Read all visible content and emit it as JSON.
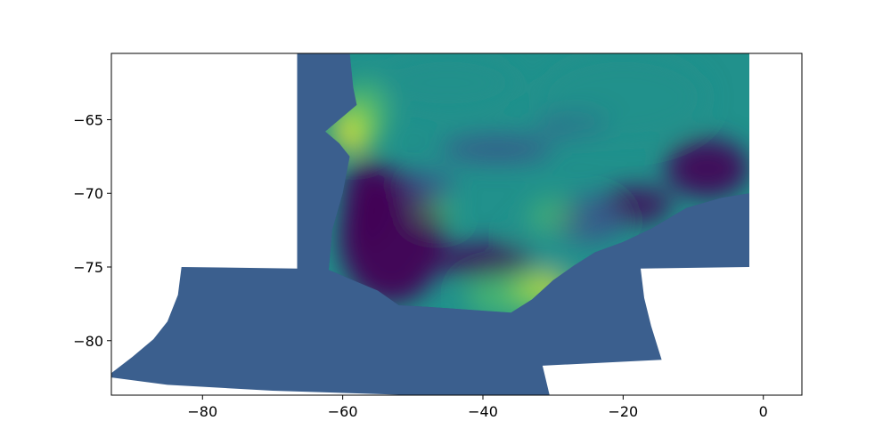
{
  "chart_data": {
    "type": "heatmap",
    "title": "",
    "xlabel": "",
    "ylabel": "",
    "xlim": [
      -93,
      5.5
    ],
    "ylim": [
      -83.7,
      -60.5
    ],
    "xticks": [
      {
        "value": -80,
        "label": "−80"
      },
      {
        "value": -60,
        "label": "−60"
      },
      {
        "value": -40,
        "label": "−40"
      },
      {
        "value": -20,
        "label": "−20"
      },
      {
        "value": 0,
        "label": "0"
      }
    ],
    "yticks": [
      {
        "value": -65,
        "label": "−65"
      },
      {
        "value": -70,
        "label": "−70"
      },
      {
        "value": -75,
        "label": "−75"
      },
      {
        "value": -80,
        "label": "−80"
      }
    ],
    "grid": false,
    "legend": "none",
    "colormap": "viridis",
    "colors": {
      "background_fill": "#3b5f8e",
      "low": "#440154",
      "mid_low": "#3b528b",
      "mid": "#21918c",
      "mid_high": "#5ec962",
      "high": "#fde725"
    },
    "regions": {
      "domain_outline_lonlat": [
        [
          -93,
          -82.2
        ],
        [
          -90,
          -81.1
        ],
        [
          -87,
          -79.9
        ],
        [
          -85,
          -78.7
        ],
        [
          -83.5,
          -76.9
        ],
        [
          -83,
          -75.0
        ],
        [
          -66.5,
          -75.1
        ],
        [
          -66.5,
          -60.5
        ],
        [
          -2,
          -60.5
        ],
        [
          -2,
          -75.0
        ],
        [
          -17.5,
          -75.1
        ],
        [
          -17.0,
          -77.1
        ],
        [
          -16.0,
          -79.0
        ],
        [
          -14.5,
          -81.3
        ],
        [
          -31.5,
          -81.7
        ],
        [
          -30.5,
          -83.7
        ],
        [
          -36,
          -83.7
        ],
        [
          -50,
          -83.7
        ],
        [
          -70,
          -83.4
        ],
        [
          -85,
          -83.0
        ],
        [
          -93,
          -82.5
        ]
      ],
      "data_outline_lonlat": [
        [
          -59,
          -60.5
        ],
        [
          -2,
          -60.5
        ],
        [
          -2,
          -70.0
        ],
        [
          -6,
          -70.3
        ],
        [
          -11,
          -71.0
        ],
        [
          -16,
          -72.4
        ],
        [
          -20,
          -73.3
        ],
        [
          -24,
          -74.0
        ],
        [
          -27,
          -74.9
        ],
        [
          -30,
          -75.9
        ],
        [
          -33,
          -77.2
        ],
        [
          -36,
          -78.1
        ],
        [
          -42,
          -77.9
        ],
        [
          -48,
          -77.7
        ],
        [
          -52,
          -77.6
        ],
        [
          -55,
          -76.6
        ],
        [
          -58,
          -76.0
        ],
        [
          -60,
          -75.6
        ],
        [
          -62,
          -75.2
        ],
        [
          -61.5,
          -72.5
        ],
        [
          -60,
          -70.0
        ],
        [
          -59,
          -67.5
        ],
        [
          -60.5,
          -66.6
        ],
        [
          -62.5,
          -65.8
        ],
        [
          -60,
          -64.8
        ],
        [
          -58,
          -64.0
        ],
        [
          -58.5,
          -62.8
        ],
        [
          -59,
          -60.5
        ]
      ],
      "features": [
        {
          "level": "high",
          "center_lonlat": [
            -58.5,
            -65.6
          ],
          "radius_lonlat": [
            2.8,
            1.6
          ],
          "opacity": 0.95
        },
        {
          "level": "mid_high",
          "center_lonlat": [
            -57.0,
            -64.5
          ],
          "radius_lonlat": [
            3.5,
            2.2
          ],
          "opacity": 0.6
        },
        {
          "level": "high",
          "center_lonlat": [
            -32.0,
            -76.5
          ],
          "radius_lonlat": [
            4.0,
            1.0
          ],
          "opacity": 0.9
        },
        {
          "level": "mid_high",
          "center_lonlat": [
            -36.0,
            -77.0
          ],
          "radius_lonlat": [
            6.5,
            1.4
          ],
          "opacity": 0.6
        },
        {
          "level": "mid",
          "center_lonlat": [
            -30.0,
            -73.2
          ],
          "radius_lonlat": [
            6.0,
            1.8
          ],
          "opacity": 0.7
        },
        {
          "level": "low",
          "center_lonlat": [
            -53.0,
            -73.0
          ],
          "radius_lonlat": [
            7.5,
            4.5
          ],
          "opacity": 0.95
        },
        {
          "level": "low",
          "center_lonlat": [
            -56.5,
            -70.5
          ],
          "radius_lonlat": [
            3.5,
            3.0
          ],
          "opacity": 0.9
        },
        {
          "level": "low",
          "center_lonlat": [
            -40.0,
            -74.5
          ],
          "radius_lonlat": [
            7.0,
            1.2
          ],
          "opacity": 0.8
        },
        {
          "level": "low",
          "center_lonlat": [
            -8.0,
            -68.3
          ],
          "radius_lonlat": [
            6.0,
            2.0
          ],
          "opacity": 0.9
        },
        {
          "level": "low",
          "center_lonlat": [
            -18.0,
            -70.8
          ],
          "radius_lonlat": [
            5.0,
            1.3
          ],
          "opacity": 0.8
        },
        {
          "level": "mid_low",
          "center_lonlat": [
            -25.0,
            -71.8
          ],
          "radius_lonlat": [
            5.0,
            1.6
          ],
          "opacity": 0.8
        },
        {
          "level": "mid_low",
          "center_lonlat": [
            -38.0,
            -67.0
          ],
          "radius_lonlat": [
            8.0,
            0.9
          ],
          "opacity": 0.8
        },
        {
          "level": "mid_low",
          "center_lonlat": [
            -27.0,
            -65.3
          ],
          "radius_lonlat": [
            5.0,
            0.9
          ],
          "opacity": 0.7
        },
        {
          "level": "mid_low",
          "center_lonlat": [
            -48.0,
            -69.5
          ],
          "radius_lonlat": [
            4.0,
            1.0
          ],
          "opacity": 0.7
        },
        {
          "level": "mid_high",
          "center_lonlat": [
            -47.0,
            -71.2
          ],
          "radius_lonlat": [
            3.0,
            0.9
          ],
          "opacity": 0.5
        },
        {
          "level": "mid_high",
          "center_lonlat": [
            -30.0,
            -71.5
          ],
          "radius_lonlat": [
            3.5,
            1.2
          ],
          "opacity": 0.45
        },
        {
          "level": "mid",
          "center_lonlat": [
            -20.0,
            -63.5
          ],
          "radius_lonlat": [
            12.0,
            3.0
          ],
          "opacity": 0.5
        },
        {
          "level": "mid",
          "center_lonlat": [
            -45.0,
            -62.5
          ],
          "radius_lonlat": [
            10.0,
            2.0
          ],
          "opacity": 0.5
        }
      ]
    }
  }
}
